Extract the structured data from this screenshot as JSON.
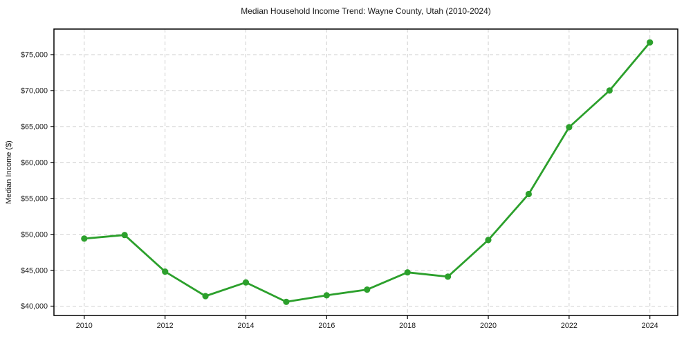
{
  "chart_data": {
    "type": "line",
    "title": "Median Household Income Trend: Wayne County, Utah (2010-2024)",
    "xlabel": "",
    "ylabel": "Median Income ($)",
    "x": [
      2010,
      2011,
      2012,
      2013,
      2014,
      2015,
      2016,
      2017,
      2018,
      2019,
      2020,
      2021,
      2022,
      2023,
      2024
    ],
    "series": [
      {
        "name": "Median Household Income",
        "values": [
          49400,
          49900,
          44800,
          41400,
          43300,
          40600,
          41500,
          42300,
          44700,
          44100,
          49200,
          55600,
          64900,
          70000,
          76700
        ],
        "color": "#2ca02c"
      }
    ],
    "xlim": [
      2009.25,
      2024.69
    ],
    "ylim": [
      38700,
      78560
    ],
    "xticks": [
      2010,
      2012,
      2014,
      2016,
      2018,
      2020,
      2022,
      2024
    ],
    "yticks": [
      40000,
      45000,
      50000,
      55000,
      60000,
      65000,
      70000,
      75000
    ],
    "ytick_labels": [
      "$40,000",
      "$45,000",
      "$50,000",
      "$55,000",
      "$60,000",
      "$65,000",
      "$70,000",
      "$75,000"
    ],
    "grid": true,
    "grid_style": "dashed",
    "grid_color": "#cfcfcf",
    "axis_color": "#000000",
    "background": "#ffffff",
    "legend": false,
    "marker": "circle"
  }
}
